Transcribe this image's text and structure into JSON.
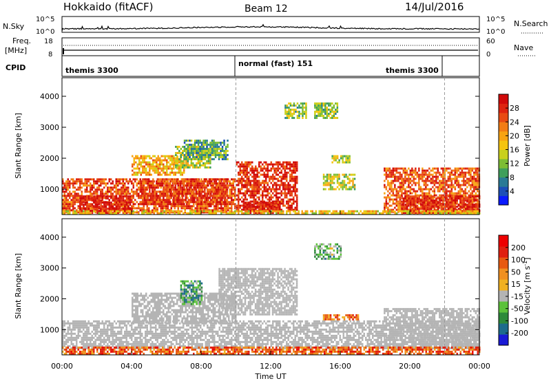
{
  "header": {
    "station": "Hokkaido (fitACF)",
    "beam": "Beam 12",
    "date": "14/Jul/2016"
  },
  "panels": {
    "nsky": {
      "label": "N.Sky",
      "ticks_left": [
        "10^5",
        "10^0"
      ],
      "ticks_right": [
        "10^5",
        "10^0"
      ],
      "right_label": "N.Search",
      "right_legend_line": "dotted"
    },
    "freq": {
      "label_line1": "Freq.",
      "label_line2": "[MHz]",
      "ticks_left": [
        "18",
        "8"
      ],
      "ticks_right": [
        "60",
        "0"
      ],
      "right_label": "Nave",
      "right_legend_line": "dotted"
    },
    "cpid": {
      "label": "CPID",
      "segments": [
        {
          "name": "themis 3300",
          "start": 0.0,
          "end": 10.0
        },
        {
          "name": "normal (fast) 151",
          "start": 10.0,
          "end": 22.0
        },
        {
          "name": "themis 3300",
          "start": 22.0,
          "end": 24.0
        }
      ]
    }
  },
  "x_axis": {
    "label": "Time UT",
    "ticks": [
      "00:00",
      "04:00",
      "08:00",
      "12:00",
      "16:00",
      "20:00",
      "00:00"
    ],
    "range_hours": [
      0,
      24
    ]
  },
  "chart_data": [
    {
      "type": "heatmap",
      "name": "power",
      "ylabel": "Slant Range [km]",
      "ylim": [
        180,
        4600
      ],
      "yticks": [
        1000,
        2000,
        3000,
        4000
      ],
      "colorbar": {
        "label": "Power [dB]",
        "ticks": [
          "4",
          "8",
          "12",
          "16",
          "20",
          "24",
          "28"
        ],
        "colors": [
          "#0a1aff",
          "#1d4fb8",
          "#2a7a96",
          "#3f9f5b",
          "#7dbd35",
          "#c9d01c",
          "#f5c40f",
          "#f8a312",
          "#f27c14",
          "#e84b13",
          "#de2410",
          "#d00a0a"
        ]
      },
      "regions": [
        {
          "t0": 0.0,
          "t1": 10.0,
          "r0": 280,
          "r1": 1350,
          "level": 0.8
        },
        {
          "t0": 1.0,
          "t1": 4.0,
          "r0": 250,
          "r1": 800,
          "level": 0.95
        },
        {
          "t0": 4.5,
          "t1": 9.5,
          "r0": 550,
          "r1": 1350,
          "level": 0.85
        },
        {
          "t0": 4.0,
          "t1": 7.0,
          "r0": 1450,
          "r1": 2100,
          "level": 0.6
        },
        {
          "t0": 6.5,
          "t1": 8.5,
          "r0": 1700,
          "r1": 2400,
          "level": 0.45
        },
        {
          "t0": 7.0,
          "t1": 9.5,
          "r0": 2000,
          "r1": 2600,
          "level": 0.3
        },
        {
          "t0": 10.0,
          "t1": 13.5,
          "r0": 350,
          "r1": 1900,
          "level": 0.88
        },
        {
          "t0": 10.5,
          "t1": 12.5,
          "r0": 250,
          "r1": 600,
          "level": 0.92
        },
        {
          "t0": 15.0,
          "t1": 16.8,
          "r0": 1000,
          "r1": 1500,
          "level": 0.45
        },
        {
          "t0": 15.5,
          "t1": 16.5,
          "r0": 1900,
          "r1": 2100,
          "level": 0.45
        },
        {
          "t0": 14.5,
          "t1": 15.8,
          "r0": 3300,
          "r1": 3800,
          "level": 0.4
        },
        {
          "t0": 12.8,
          "t1": 14.0,
          "r0": 3300,
          "r1": 3800,
          "level": 0.4
        },
        {
          "t0": 18.5,
          "t1": 24.0,
          "r0": 300,
          "r1": 1700,
          "level": 0.78
        },
        {
          "t0": 19.5,
          "t1": 24.0,
          "r0": 250,
          "r1": 800,
          "level": 0.9
        },
        {
          "t0": 0.0,
          "t1": 24.0,
          "r0": 200,
          "r1": 320,
          "level": 0.55
        }
      ]
    },
    {
      "type": "heatmap",
      "name": "velocity",
      "ylabel": "Slant Range [km]",
      "ylim": [
        180,
        4600
      ],
      "yticks": [
        1000,
        2000,
        3000,
        4000
      ],
      "colorbar": {
        "label": "Velocity [m s",
        "label_sup": "-1",
        "label_end": "]",
        "ticks": [
          "200",
          "100",
          "50",
          "15",
          "-15",
          "-50",
          "-100",
          "-200"
        ],
        "colors": [
          "#1a1ad6",
          "#1d6b8c",
          "#2d8a3a",
          "#5cc23a",
          "#b4b4b4",
          "#f0b020",
          "#f09020",
          "#e85a10",
          "#e02010",
          "#ee0000"
        ]
      },
      "regions": [
        {
          "t0": 0.0,
          "t1": 24.0,
          "r0": 400,
          "r1": 1300,
          "level": 0.5
        },
        {
          "t0": 4.0,
          "t1": 10.0,
          "r0": 1200,
          "r1": 2200,
          "level": 0.5
        },
        {
          "t0": 9.0,
          "t1": 13.5,
          "r0": 1500,
          "r1": 3000,
          "level": 0.5
        },
        {
          "t0": 18.5,
          "t1": 24.0,
          "r0": 400,
          "r1": 1700,
          "level": 0.5
        },
        {
          "t0": 15.0,
          "t1": 17.0,
          "r0": 1300,
          "r1": 1500,
          "level": 0.72
        },
        {
          "t0": 6.8,
          "t1": 8.0,
          "r0": 1800,
          "r1": 2600,
          "level": 0.3
        },
        {
          "t0": 14.5,
          "t1": 16.0,
          "r0": 3300,
          "r1": 3800,
          "level": 0.35
        },
        {
          "t0": 0.0,
          "t1": 24.0,
          "r0": 200,
          "r1": 450,
          "level": 0.75
        }
      ]
    }
  ]
}
